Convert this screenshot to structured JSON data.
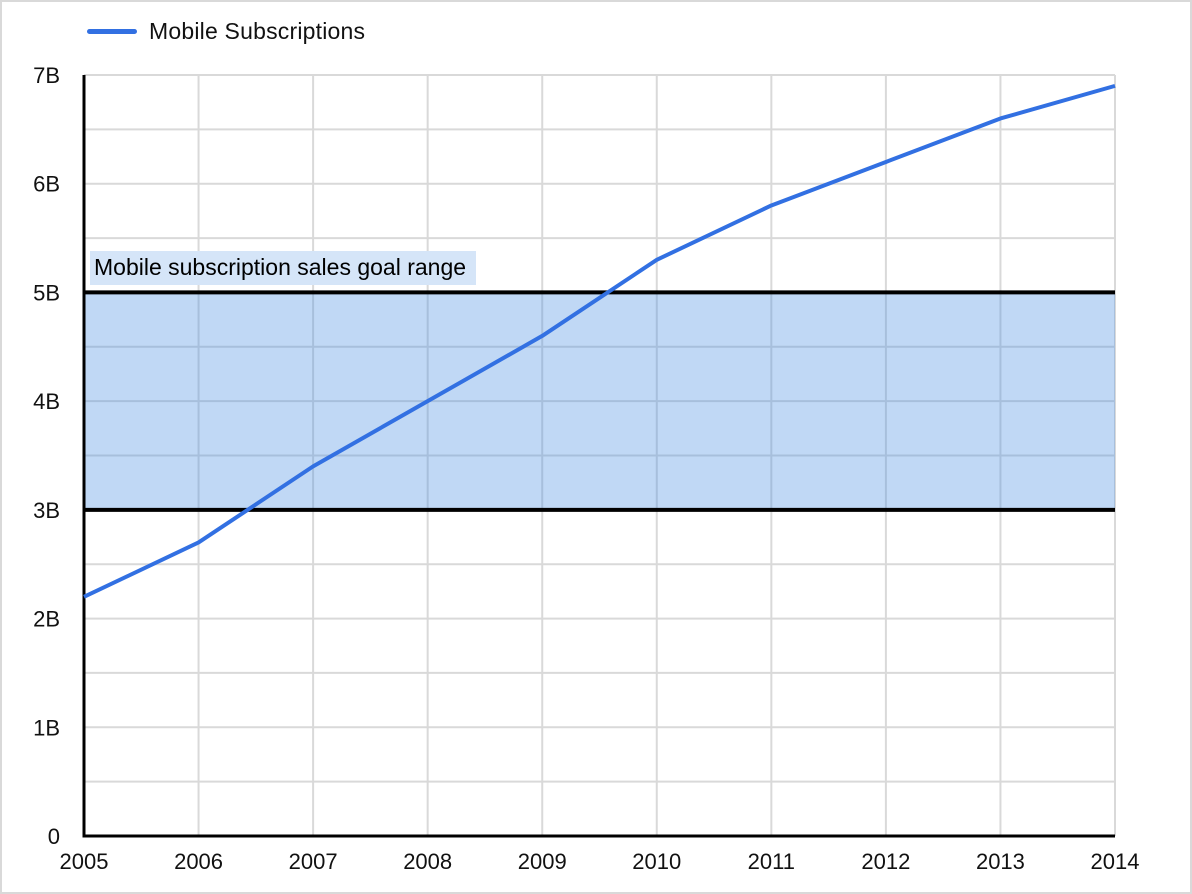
{
  "chart_data": {
    "type": "line",
    "title": "",
    "xlabel": "",
    "ylabel": "",
    "x": [
      2005,
      2006,
      2007,
      2008,
      2009,
      2010,
      2011,
      2012,
      2013,
      2014
    ],
    "x_tick_labels": [
      "2005",
      "2006",
      "2007",
      "2008",
      "2009",
      "2010",
      "2011",
      "2012",
      "2013",
      "2014"
    ],
    "series": [
      {
        "name": "Mobile Subscriptions",
        "color": "#3270e2",
        "values": [
          2.2,
          2.7,
          3.4,
          4.0,
          4.6,
          5.3,
          5.8,
          6.2,
          6.6,
          6.9
        ]
      }
    ],
    "ylim": [
      0,
      7
    ],
    "y_major_step": 1,
    "y_minor_step": 0.5,
    "y_tick_labels": [
      "0",
      "1B",
      "2B",
      "3B",
      "4B",
      "5B",
      "6B",
      "7B"
    ],
    "grid": true,
    "grid_color": "#d9d9d9",
    "axis_color": "#000000",
    "tick_text_color": "#111111",
    "legend_position": "top-left",
    "annotation_band": {
      "from": 3,
      "to": 5,
      "fill": "#4a90e2",
      "fill_opacity": 0.35,
      "border_color": "#000000",
      "label": "Mobile subscription sales goal range",
      "label_bg": "#d5e5f8",
      "label_text_color": "#000000"
    }
  }
}
